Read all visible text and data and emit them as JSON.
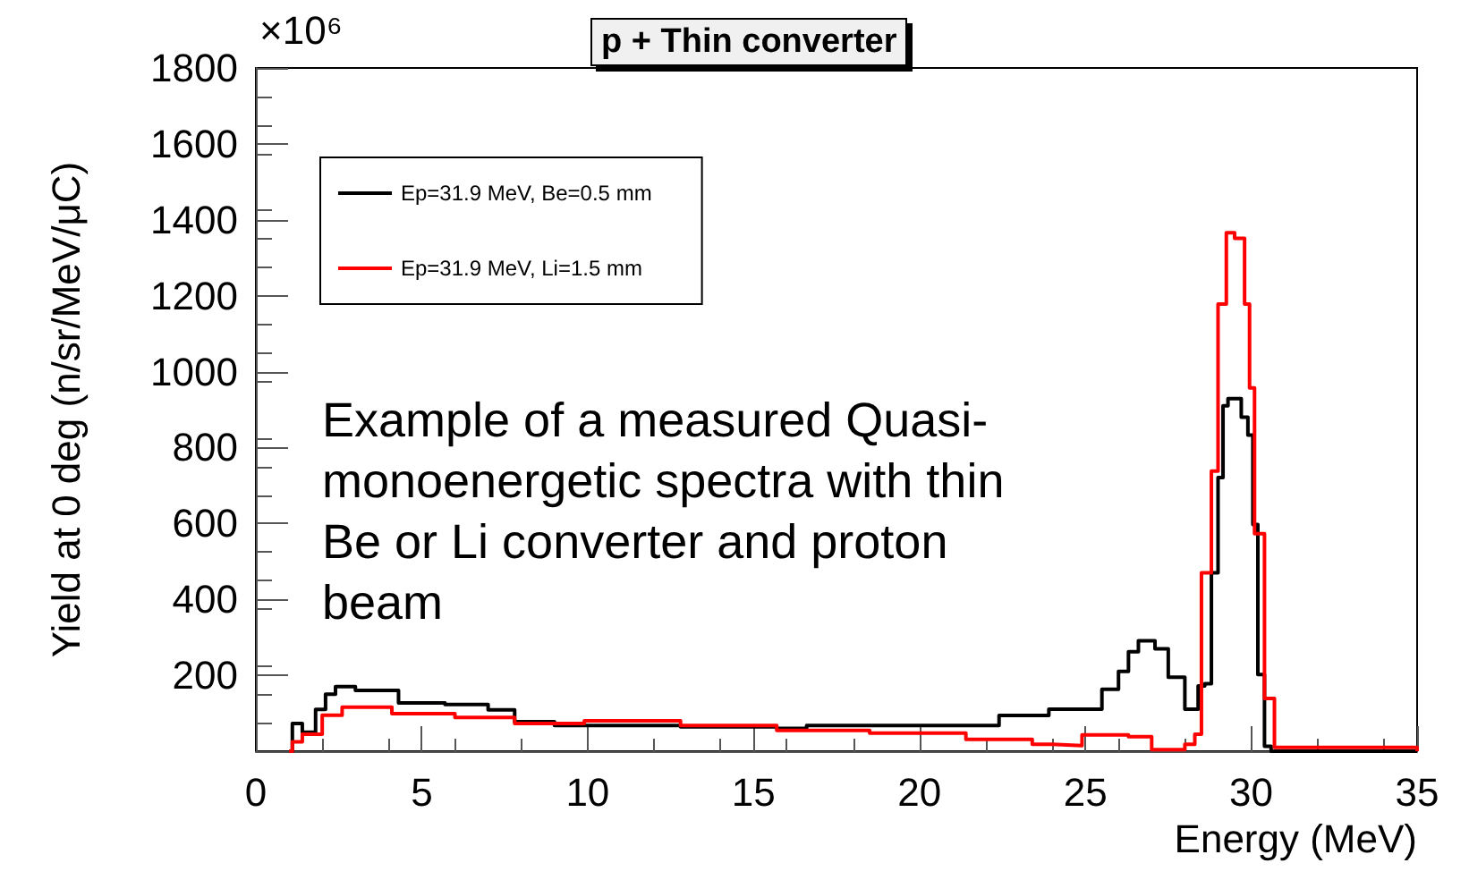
{
  "chart_data": {
    "type": "step",
    "title": "p + Thin converter",
    "xlabel": "Energy (MeV)",
    "ylabel": "Yield at 0 deg (n/sr/MeV/μC)",
    "annotations": [
      "×10⁶",
      "Example of a measured Quasi-\nmonoenergetic spectra with thin\nBe or Li converter and proton\nbeam"
    ],
    "xlim": [
      0,
      35
    ],
    "xticks": [
      0,
      5,
      10,
      15,
      20,
      25,
      30,
      35
    ],
    "ylim": [
      0,
      1800
    ],
    "yticks": [
      200,
      400,
      600,
      800,
      1000,
      1200,
      1400,
      1600,
      1800
    ],
    "grid": false,
    "legend": "top left",
    "line_style": "solid",
    "marker": "none",
    "series": [
      {
        "name": "Ep=31.9 MeV, Be=0.5 mm",
        "color": "#000000",
        "x": [
          1.0,
          1.1,
          1.4,
          1.8,
          2.1,
          2.4,
          3.0,
          4.3,
          5.7,
          7.0,
          7.8,
          9.0,
          12.8,
          15.7,
          16.6,
          19.5,
          22.4,
          23.9,
          25.5,
          26.0,
          26.3,
          26.6,
          27.1,
          27.5,
          28.0,
          28.4,
          28.6,
          28.8,
          29.0,
          29.15,
          29.3,
          29.7,
          29.9,
          30.05,
          30.2,
          30.4,
          30.6,
          35.0
        ],
        "values": [
          0,
          73,
          50,
          110,
          150,
          170,
          160,
          127,
          123,
          109,
          78,
          68,
          64,
          60,
          68,
          68,
          94,
          111,
          163,
          210,
          262,
          291,
          270,
          195,
          111,
          172,
          178,
          470,
          721,
          910,
          929,
          880,
          833,
          597,
          202,
          13,
          0,
          0
        ]
      },
      {
        "name": "Ep=31.9 MeV, Li=1.5 mm",
        "color": "#ff0000",
        "x": [
          1.0,
          1.1,
          1.4,
          2.0,
          2.6,
          4.1,
          6.0,
          7.8,
          9.9,
          12.8,
          15.7,
          18.5,
          21.4,
          23.4,
          24.0,
          24.9,
          26.3,
          27.0,
          28.0,
          28.3,
          28.5,
          28.8,
          29.0,
          29.25,
          29.5,
          29.8,
          29.95,
          30.1,
          30.4,
          30.7,
          35.0
        ],
        "values": [
          0,
          25,
          45,
          95,
          116,
          99,
          89,
          73,
          80,
          68,
          55,
          48,
          31,
          18,
          15,
          43,
          38,
          4,
          18,
          45,
          470,
          738,
          1178,
          1366,
          1351,
          1178,
          957,
          573,
          139,
          10,
          0
        ]
      }
    ]
  }
}
